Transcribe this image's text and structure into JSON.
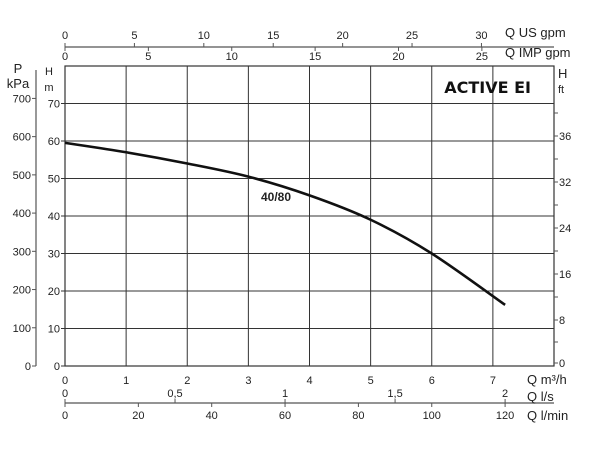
{
  "chart_data": {
    "type": "line",
    "title": "ACTIVE EI",
    "series": [
      {
        "name": "40/80",
        "x": [
          0,
          1,
          2,
          3,
          4,
          5,
          6,
          7.2
        ],
        "y": [
          59.5,
          57,
          54,
          50.5,
          45.5,
          39,
          30,
          16.3
        ]
      }
    ],
    "xlabel": "Q m³/h",
    "xlim": [
      0,
      8
    ],
    "xticks": [
      0,
      1,
      2,
      3,
      4,
      5,
      6,
      7
    ],
    "ylabel_top": "H",
    "ylabel": "m",
    "ylim": [
      0,
      80
    ],
    "yticks": [
      0,
      10,
      20,
      30,
      40,
      50,
      60,
      70
    ],
    "grid": true,
    "secondary_axes": {
      "pressure": {
        "label_top": "P",
        "label": "kPa",
        "ticks": [
          0,
          100,
          200,
          300,
          400,
          500,
          600,
          700
        ]
      },
      "feet": {
        "label_top": "H",
        "label": "ft",
        "ticks": [
          "0",
          "8",
          "16",
          "24",
          "32",
          "36"
        ]
      },
      "us_gpm": {
        "label": "Q US gpm",
        "ticks": [
          0,
          5,
          10,
          15,
          20,
          25,
          30
        ]
      },
      "imp_gpm": {
        "label": "Q IMP gpm",
        "ticks": [
          0,
          5,
          10,
          15,
          20,
          25
        ]
      },
      "l_s": {
        "label": "Q l/s",
        "ticks": [
          "0",
          "0,5",
          "1",
          "1,5",
          "2"
        ]
      },
      "l_min": {
        "label": "Q l/min",
        "ticks": [
          0,
          20,
          40,
          60,
          80,
          100,
          120
        ]
      }
    }
  }
}
